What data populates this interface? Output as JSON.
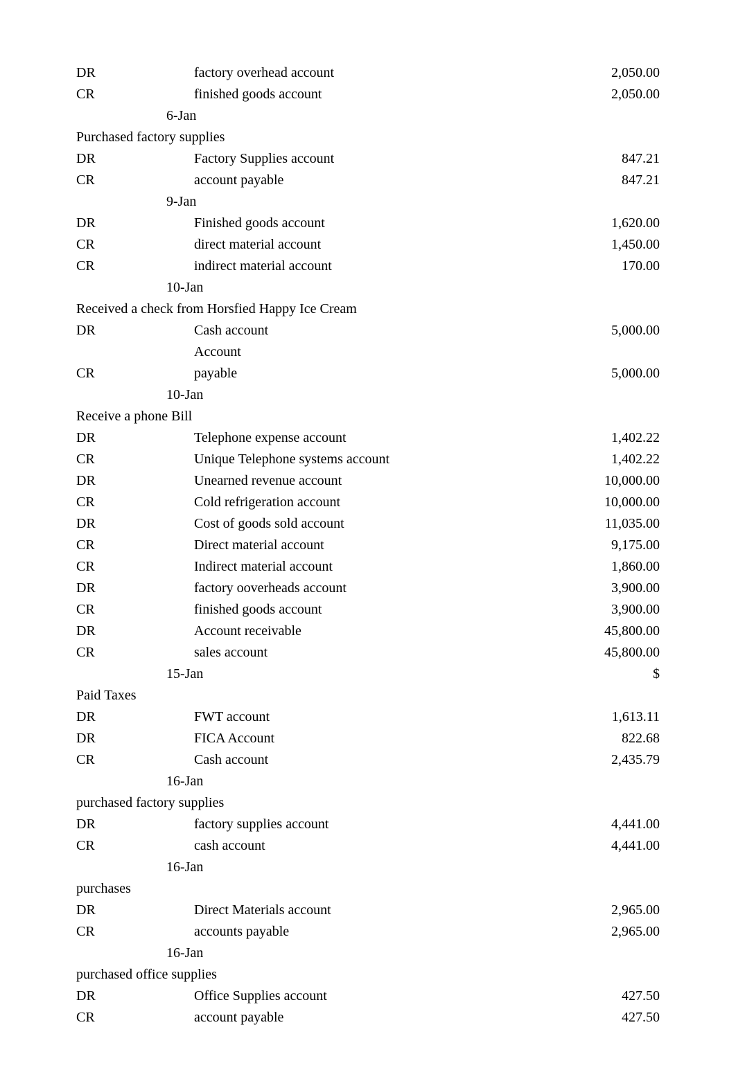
{
  "rows": [
    {
      "type": "entry",
      "left": "DR",
      "mid": "factory overhead account",
      "right": "2,050.00"
    },
    {
      "type": "entry",
      "left": "CR",
      "mid": "finished goods account",
      "right": "2,050.00"
    },
    {
      "type": "date",
      "value": "6-Jan"
    },
    {
      "type": "section",
      "title": "Purchased factory supplies"
    },
    {
      "type": "entry",
      "left": "DR",
      "mid": "Factory Supplies account",
      "right": "847.21"
    },
    {
      "type": "entry",
      "left": "CR",
      "mid": "account payable",
      "right": "847.21"
    },
    {
      "type": "date",
      "value": "9-Jan"
    },
    {
      "type": "entry",
      "left": "DR",
      "mid": "Finished goods account",
      "right": "1,620.00"
    },
    {
      "type": "entry",
      "left": "CR",
      "mid": "direct material account",
      "right": "1,450.00"
    },
    {
      "type": "entry",
      "left": "CR",
      "mid": "indirect material account",
      "right": "170.00"
    },
    {
      "type": "date",
      "value": "10-Jan"
    },
    {
      "type": "section",
      "title": "Received a check from Horsfied Happy Ice Cream"
    },
    {
      "type": "entry",
      "left": "DR",
      "mid": "Cash account",
      "right": "5,000.00"
    },
    {
      "type": "entry",
      "left": "",
      "mid": "Account",
      "right": ""
    },
    {
      "type": "entry",
      "left": "CR",
      "mid": "payable",
      "right": "5,000.00"
    },
    {
      "type": "date",
      "value": "10-Jan"
    },
    {
      "type": "section",
      "title": "Receive a phone Bill"
    },
    {
      "type": "entry",
      "left": "DR",
      "mid": "Telephone expense account",
      "right": "1,402.22"
    },
    {
      "type": "entry",
      "left": "CR",
      "mid": "Unique Telephone systems account",
      "right": "1,402.22"
    },
    {
      "type": "entry",
      "left": "DR",
      "mid": "Unearned revenue account",
      "right": "10,000.00"
    },
    {
      "type": "entry",
      "left": "CR",
      "mid": "Cold refrigeration account",
      "right": "10,000.00"
    },
    {
      "type": "entry",
      "left": "DR",
      "mid": "Cost of goods sold account",
      "right": "11,035.00"
    },
    {
      "type": "entry",
      "left": "CR",
      "mid": "Direct material account",
      "right": "9,175.00"
    },
    {
      "type": "entry",
      "left": "CR",
      "mid": "Indirect material account",
      "right": "1,860.00"
    },
    {
      "type": "entry",
      "left": "DR",
      "mid": "factory ooverheads account",
      "right": "3,900.00"
    },
    {
      "type": "entry",
      "left": "CR",
      "mid": "finished goods account",
      "right": "3,900.00"
    },
    {
      "type": "entry",
      "left": "DR",
      "mid": "Account receivable",
      "right": "45,800.00"
    },
    {
      "type": "entry",
      "left": "CR",
      "mid": "sales account",
      "right": "45,800.00"
    },
    {
      "type": "entry",
      "left": "",
      "mid": "15-Jan",
      "right": "$",
      "midIsDate": true
    },
    {
      "type": "section",
      "title": "Paid Taxes"
    },
    {
      "type": "entry",
      "left": "DR",
      "mid": "FWT account",
      "right": "1,613.11"
    },
    {
      "type": "entry",
      "left": "DR",
      "mid": "FICA Account",
      "right": "822.68"
    },
    {
      "type": "entry",
      "left": "CR",
      "mid": "Cash account",
      "right": "2,435.79"
    },
    {
      "type": "date",
      "value": "16-Jan"
    },
    {
      "type": "section",
      "title": "purchased factory supplies"
    },
    {
      "type": "entry",
      "left": "DR",
      "mid": "factory supplies account",
      "right": "4,441.00"
    },
    {
      "type": "entry",
      "left": "CR",
      "mid": "cash account",
      "right": "4,441.00"
    },
    {
      "type": "date",
      "value": "16-Jan"
    },
    {
      "type": "section",
      "title": "purchases"
    },
    {
      "type": "entry",
      "left": "DR",
      "mid": "Direct Materials account",
      "right": "2,965.00"
    },
    {
      "type": "entry",
      "left": "CR",
      "mid": "accounts payable",
      "right": "2,965.00"
    },
    {
      "type": "date",
      "value": "16-Jan"
    },
    {
      "type": "section",
      "title": "purchased office supplies"
    },
    {
      "type": "entry",
      "left": "DR",
      "mid": "Office Supplies account",
      "right": "427.50"
    },
    {
      "type": "entry",
      "left": "CR",
      "mid": "account payable",
      "right": "427.50"
    }
  ]
}
